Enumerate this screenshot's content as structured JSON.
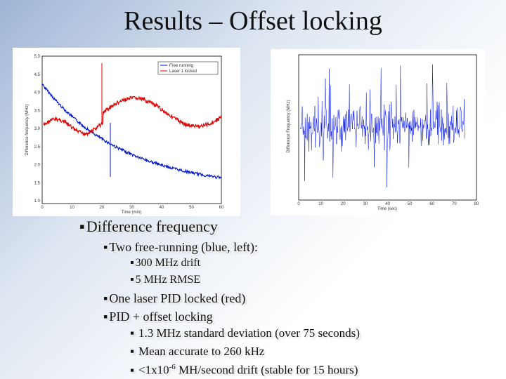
{
  "title": "Results – Offset locking",
  "figures": [
    {
      "x_label": "Time (min)",
      "y_label": "Difference frequency (MHz)",
      "xticks": [
        0,
        10,
        20,
        30,
        40,
        50,
        60
      ],
      "yticks": [
        "5.0",
        "4.5",
        "4.0",
        "3.5",
        "3.0",
        "2.5",
        "2.0",
        "1.5",
        "1.0"
      ],
      "legend": [
        "Free running",
        "Laser 1 locked"
      ]
    },
    {
      "x_label": "Time (sec)",
      "y_label": "Difference Frequency (MHz)",
      "xticks": [
        0,
        10,
        20,
        30,
        40,
        50,
        60,
        70,
        80
      ]
    }
  ],
  "bullets": [
    {
      "level": 1,
      "text": "Difference frequency"
    },
    {
      "level": 2,
      "text": "Two free-running (blue, left):"
    },
    {
      "level": 3,
      "text": "300 MHz drift"
    },
    {
      "level": 3,
      "text": "5 MHz RMSE"
    },
    {
      "level": 2,
      "text": "One laser PID locked (red)"
    },
    {
      "level": 2,
      "text": "PID + offset locking"
    },
    {
      "level": 4,
      "text": "1.3 MHz standard deviation (over 75 seconds)"
    },
    {
      "level": 4,
      "text": "Mean accurate to 260 kHz"
    },
    {
      "level": 4,
      "text": "<1x10",
      "sup": "-6",
      "rest": " MH/second drift (stable for 15 hours)"
    }
  ]
}
